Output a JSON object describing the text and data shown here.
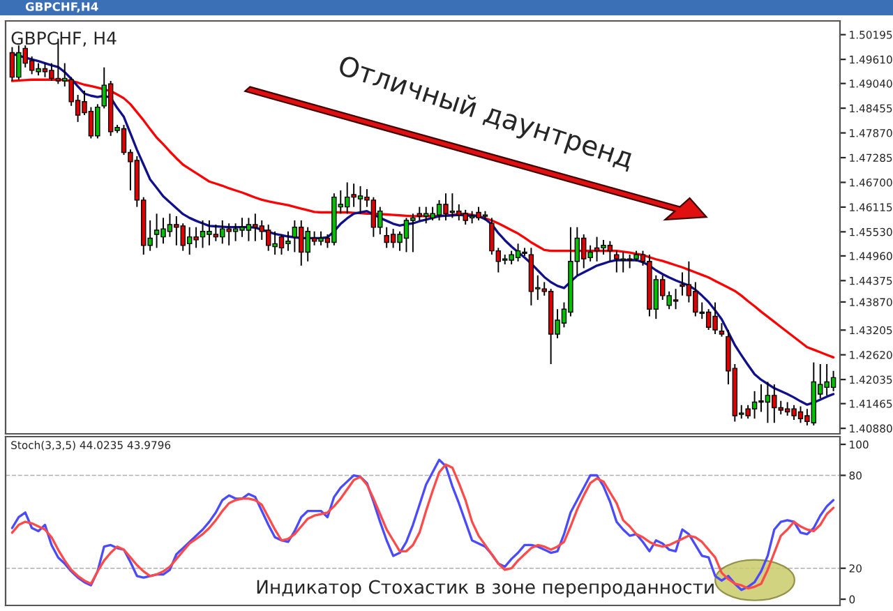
{
  "chart_data": [
    {
      "type": "candlestick",
      "title": "GBPCHF, H4",
      "annotations": [
        "GBPCHF,H4",
        "Отличный даунтренд"
      ],
      "categories": [
        null,
        null,
        null,
        null,
        null,
        null,
        null,
        null,
        null,
        null,
        null,
        null,
        null,
        null,
        null,
        null,
        null,
        null,
        null,
        null,
        null,
        null,
        null,
        null,
        null,
        null,
        null,
        null,
        null,
        null,
        null,
        null,
        null,
        null,
        null,
        null,
        null,
        null,
        null,
        null,
        null,
        null,
        null,
        null,
        null,
        null,
        null,
        null,
        null,
        null,
        null,
        null,
        null,
        null,
        null,
        null,
        null,
        null,
        null,
        null,
        null,
        null,
        null,
        null,
        null,
        null,
        null,
        null,
        null,
        null,
        null,
        null,
        null,
        null,
        null,
        null,
        null,
        null,
        null,
        null,
        null,
        null,
        null,
        null,
        null,
        null,
        null,
        null,
        null,
        null,
        null,
        null,
        null,
        null,
        null,
        null,
        null,
        null,
        null,
        null,
        null,
        null,
        null,
        null,
        null,
        null,
        null,
        null,
        null,
        null,
        null,
        null,
        null,
        null,
        null,
        null,
        null,
        null,
        null,
        null,
        null,
        null,
        null,
        null,
        null,
        null
      ],
      "ohlc": [
        [
          1.4977,
          1.499,
          1.491,
          1.4919
        ],
        [
          1.4919,
          1.4994,
          1.4913,
          1.4977
        ],
        [
          1.4987,
          1.4994,
          1.4942,
          1.4952
        ],
        [
          1.4958,
          1.4968,
          1.4926,
          1.4935
        ],
        [
          1.4932,
          1.4952,
          1.4923,
          1.4939
        ],
        [
          1.4939,
          1.4952,
          1.4919,
          1.4932
        ],
        [
          1.4935,
          1.4952,
          1.491,
          1.4916
        ],
        [
          1.4916,
          1.501,
          1.4903,
          1.491
        ],
        [
          1.491,
          1.4952,
          1.4897,
          1.4916
        ],
        [
          1.4913,
          1.4919,
          1.4851,
          1.4861
        ],
        [
          1.4864,
          1.4877,
          1.4813,
          1.4829
        ],
        [
          1.4861,
          1.4887,
          1.4829,
          1.4835
        ],
        [
          1.4838,
          1.4848,
          1.4774,
          1.478
        ],
        [
          1.478,
          1.4855,
          1.4774,
          1.4848
        ],
        [
          1.4851,
          1.4942,
          1.4845,
          1.49
        ],
        [
          1.4903,
          1.491,
          1.478,
          1.479
        ],
        [
          1.4793,
          1.4806,
          1.4787,
          1.48
        ],
        [
          1.4797,
          1.4806,
          1.4735,
          1.4741
        ],
        [
          1.4741,
          1.4748,
          1.4651,
          1.4719
        ],
        [
          1.4722,
          1.4732,
          1.4612,
          1.4628
        ],
        [
          1.4628,
          1.4635,
          1.4499,
          1.4521
        ],
        [
          1.4521,
          1.458,
          1.4508,
          1.4538
        ],
        [
          1.4547,
          1.4596,
          1.4515,
          1.4557
        ],
        [
          1.4541,
          1.4586,
          1.4525,
          1.456
        ],
        [
          1.4554,
          1.4596,
          1.4541,
          1.457
        ],
        [
          1.457,
          1.459,
          1.4521,
          1.4564
        ],
        [
          1.4567,
          1.4573,
          1.4508,
          1.4521
        ],
        [
          1.4525,
          1.4564,
          1.4499,
          1.4541
        ],
        [
          1.4541,
          1.4564,
          1.4515,
          1.4534
        ],
        [
          1.4541,
          1.458,
          1.4515,
          1.4554
        ],
        [
          1.4547,
          1.458,
          1.4521,
          1.4554
        ],
        [
          1.4547,
          1.457,
          1.4531,
          1.4541
        ],
        [
          1.4541,
          1.458,
          1.4525,
          1.456
        ],
        [
          1.456,
          1.4573,
          1.4521,
          1.4554
        ],
        [
          1.4554,
          1.4573,
          1.4531,
          1.456
        ],
        [
          1.4557,
          1.4586,
          1.4541,
          1.4564
        ],
        [
          1.4557,
          1.4586,
          1.4531,
          1.457
        ],
        [
          1.457,
          1.4596,
          1.4531,
          1.4564
        ],
        [
          1.4567,
          1.458,
          1.4534,
          1.4554
        ],
        [
          1.4557,
          1.457,
          1.4508,
          1.4521
        ],
        [
          1.4518,
          1.4554,
          1.4499,
          1.4525
        ],
        [
          1.4541,
          1.4547,
          1.4499,
          1.4515
        ],
        [
          1.4525,
          1.4554,
          1.4508,
          1.4531
        ],
        [
          1.4541,
          1.458,
          1.4505,
          1.4564
        ],
        [
          1.4564,
          1.458,
          1.4473,
          1.4505
        ],
        [
          1.4505,
          1.4564,
          1.4483,
          1.4554
        ],
        [
          1.4538,
          1.4554,
          1.4521,
          1.4531
        ],
        [
          1.4531,
          1.4554,
          1.4521,
          1.4538
        ],
        [
          1.4538,
          1.4547,
          1.4515,
          1.4528
        ],
        [
          1.4528,
          1.4644,
          1.4521,
          1.4635
        ],
        [
          1.4612,
          1.4651,
          1.4596,
          1.4618
        ],
        [
          1.4612,
          1.467,
          1.4596,
          1.4635
        ],
        [
          1.4641,
          1.4667,
          1.4612,
          1.4635
        ],
        [
          1.4631,
          1.4661,
          1.4596,
          1.4638
        ],
        [
          1.4635,
          1.4654,
          1.4612,
          1.4628
        ],
        [
          1.4628,
          1.4635,
          1.4541,
          1.4564
        ],
        [
          1.4564,
          1.4612,
          1.4547,
          1.4602
        ],
        [
          1.4544,
          1.4564,
          1.4515,
          1.4528
        ],
        [
          1.4547,
          1.456,
          1.4515,
          1.4528
        ],
        [
          1.4528,
          1.4554,
          1.4508,
          1.4547
        ],
        [
          1.4538,
          1.4586,
          1.4505,
          1.458
        ],
        [
          1.458,
          1.4596,
          1.4505,
          1.4586
        ],
        [
          1.4596,
          1.4612,
          1.458,
          1.459
        ],
        [
          1.459,
          1.4612,
          1.4573,
          1.4596
        ],
        [
          1.4586,
          1.4612,
          1.458,
          1.4596
        ],
        [
          1.4593,
          1.4628,
          1.458,
          1.4618
        ],
        [
          1.4618,
          1.4644,
          1.458,
          1.4596
        ],
        [
          1.4599,
          1.4644,
          1.4586,
          1.4602
        ],
        [
          1.4602,
          1.4618,
          1.458,
          1.4593
        ],
        [
          1.4596,
          1.4605,
          1.457,
          1.458
        ],
        [
          1.4586,
          1.4602,
          1.4573,
          1.459
        ],
        [
          1.4599,
          1.4612,
          1.458,
          1.4586
        ],
        [
          1.459,
          1.4602,
          1.458,
          1.4593
        ],
        [
          1.4573,
          1.4586,
          1.4499,
          1.4508
        ],
        [
          1.4508,
          1.4515,
          1.4457,
          1.4483
        ],
        [
          1.4486,
          1.4499,
          1.4476,
          1.4489
        ],
        [
          1.4486,
          1.4508,
          1.4476,
          1.4499
        ],
        [
          1.4492,
          1.4525,
          1.4483,
          1.4508
        ],
        [
          1.4505,
          1.4515,
          1.4496,
          1.4502
        ],
        [
          1.4499,
          1.4515,
          1.4379,
          1.4412
        ],
        [
          1.4418,
          1.445,
          1.4392,
          1.4421
        ],
        [
          1.4418,
          1.4434,
          1.4402,
          1.4412
        ],
        [
          1.4412,
          1.4418,
          1.424,
          1.4311
        ],
        [
          1.4311,
          1.437,
          1.4301,
          1.4344
        ],
        [
          1.4337,
          1.4386,
          1.4327,
          1.437
        ],
        [
          1.4363,
          1.4564,
          1.4353,
          1.4483
        ],
        [
          1.4483,
          1.4564,
          1.445,
          1.4538
        ],
        [
          1.4538,
          1.4547,
          1.4467,
          1.4489
        ],
        [
          1.4492,
          1.4521,
          1.4483,
          1.4505
        ],
        [
          1.4515,
          1.4541,
          1.4483,
          1.4508
        ],
        [
          1.4515,
          1.4534,
          1.4499,
          1.4521
        ],
        [
          1.4521,
          1.4531,
          1.4483,
          1.4508
        ],
        [
          1.4499,
          1.4508,
          1.4457,
          1.4489
        ],
        [
          1.4486,
          1.4505,
          1.4457,
          1.4489
        ],
        [
          1.4489,
          1.4499,
          1.4467,
          1.4486
        ],
        [
          1.4489,
          1.4508,
          1.4483,
          1.4499
        ],
        [
          1.4499,
          1.4508,
          1.4473,
          1.4483
        ],
        [
          1.4483,
          1.4499,
          1.4353,
          1.437
        ],
        [
          1.437,
          1.445,
          1.4347,
          1.444
        ],
        [
          1.444,
          1.445,
          1.4392,
          1.4402
        ],
        [
          1.4379,
          1.4412,
          1.437,
          1.4402
        ],
        [
          1.4392,
          1.4418,
          1.437,
          1.4389
        ],
        [
          1.4428,
          1.4457,
          1.4402,
          1.4424
        ],
        [
          1.4428,
          1.4483,
          1.4386,
          1.4402
        ],
        [
          1.4412,
          1.4434,
          1.4353,
          1.4363
        ],
        [
          1.436,
          1.4386,
          1.4347,
          1.4363
        ],
        [
          1.4363,
          1.437,
          1.4321,
          1.4327
        ],
        [
          1.4353,
          1.4386,
          1.4311,
          1.4321
        ],
        [
          1.4318,
          1.4337,
          1.4305,
          1.4311
        ],
        [
          1.4305,
          1.4321,
          1.4192,
          1.4224
        ],
        [
          1.423,
          1.424,
          1.4104,
          1.4118
        ],
        [
          1.4121,
          1.4143,
          1.4111,
          1.4124
        ],
        [
          1.4134,
          1.4143,
          1.4111,
          1.4118
        ],
        [
          1.4134,
          1.4176,
          1.4111,
          1.415
        ],
        [
          1.4153,
          1.4192,
          1.4127,
          1.415
        ],
        [
          1.415,
          1.4198,
          1.4101,
          1.4166
        ],
        [
          1.4166,
          1.4192,
          1.4101,
          1.4137
        ],
        [
          1.4137,
          1.4153,
          1.4121,
          1.4131
        ],
        [
          1.4134,
          1.415,
          1.4118,
          1.4127
        ],
        [
          1.4134,
          1.4143,
          1.4108,
          1.4118
        ],
        [
          1.4127,
          1.414,
          1.4101,
          1.4111
        ],
        [
          1.4118,
          1.4134,
          1.4095,
          1.4104
        ],
        [
          1.4101,
          1.4244,
          1.4095,
          1.4198
        ],
        [
          1.4169,
          1.424,
          1.4159,
          1.4192
        ],
        [
          1.4185,
          1.424,
          1.4166,
          1.4198
        ],
        [
          1.4185,
          1.4224,
          1.4176,
          1.4208
        ]
      ],
      "colors": [
        "#e00000",
        "#00c000",
        "#e00000",
        "#e00000",
        "#00c000",
        "#e00000",
        "#e00000",
        "#e00000",
        "#00c000",
        "#e00000",
        "#e00000",
        "#e00000",
        "#e00000",
        "#00c000",
        "#00c000",
        "#e00000",
        "#00c000",
        "#e00000",
        "#e00000",
        "#e00000",
        "#e00000",
        "#00c000",
        "#00c000",
        "#00c000",
        "#00c000",
        "#e00000",
        "#e00000",
        "#00c000",
        "#e00000",
        "#00c000",
        "#00c000",
        "#e00000",
        "#00c000",
        "#e00000",
        "#00c000",
        "#00c000",
        "#00c000",
        "#e00000",
        "#e00000",
        "#e00000",
        "#00c000",
        "#e00000",
        "#00c000",
        "#00c000",
        "#e00000",
        "#00c000",
        "#e00000",
        "#00c000",
        "#e00000",
        "#00c000",
        "#00c000",
        "#00c000",
        "#e00000",
        "#00c000",
        "#e00000",
        "#e00000",
        "#00c000",
        "#e00000",
        "#e00000",
        "#00c000",
        "#00c000",
        "#00c000",
        "#e00000",
        "#00c000",
        "#00c000",
        "#00c000",
        "#e00000",
        "#00c000",
        "#e00000",
        "#e00000",
        "#00c000",
        "#e00000",
        "#00c000",
        "#e00000",
        "#e00000",
        "#00c000",
        "#00c000",
        "#00c000",
        "#e00000",
        "#e00000",
        "#00c000",
        "#e00000",
        "#e00000",
        "#00c000",
        "#00c000",
        "#00c000",
        "#00c000",
        "#e00000",
        "#00c000",
        "#e00000",
        "#00c000",
        "#e00000",
        "#e00000",
        "#00c000",
        "#e00000",
        "#00c000",
        "#e00000",
        "#e00000",
        "#00c000",
        "#e00000",
        "#00c000",
        "#e00000",
        "#e00000",
        "#e00000",
        "#e00000",
        "#00c000",
        "#e00000",
        "#e00000",
        "#e00000",
        "#e00000",
        "#e00000",
        "#00c000",
        "#e00000",
        "#00c000",
        "#e00000",
        "#00c000",
        "#e00000",
        "#e00000",
        "#e00000",
        "#e00000",
        "#e00000",
        "#e00000",
        "#00c000",
        "#00c000",
        "#00c000",
        "#00c000"
      ],
      "series": [
        {
          "type": "line",
          "color": "#ff0000",
          "values": [
            1.491,
            1.4911,
            1.4912,
            1.4913,
            1.4913,
            1.4913,
            1.4913,
            1.4913,
            1.4912,
            1.491,
            1.4906,
            1.4901,
            1.4898,
            1.4894,
            1.489,
            1.4886,
            1.4878,
            1.4869,
            1.4855,
            1.4836,
            1.4817,
            1.4796,
            1.4776,
            1.476,
            1.4743,
            1.4727,
            1.4712,
            1.4702,
            1.4692,
            1.4682,
            1.4672,
            1.4667,
            1.4662,
            1.4656,
            1.4651,
            1.4646,
            1.464,
            1.4634,
            1.4629,
            1.4625,
            1.4622,
            1.4619,
            1.4616,
            1.4612,
            1.4608,
            1.4604,
            1.46,
            1.4599,
            1.4599,
            1.4599,
            1.4599,
            1.4599,
            1.4598,
            1.4597,
            1.4596,
            1.4596,
            1.4595,
            1.4594,
            1.4593,
            1.4592,
            1.4591,
            1.459,
            1.459,
            1.459,
            1.459,
            1.459,
            1.4592,
            1.4593,
            1.4595,
            1.4596,
            1.4593,
            1.459,
            1.4585,
            1.458,
            1.4573,
            1.4565,
            1.4557,
            1.4549,
            1.4539,
            1.4528,
            1.4519,
            1.451,
            1.4508,
            1.4508,
            1.4508,
            1.4508,
            1.4508,
            1.4508,
            1.4508,
            1.4508,
            1.4508,
            1.4508,
            1.4508,
            1.4506,
            1.4504,
            1.4501,
            1.4498,
            1.4493,
            1.4488,
            1.4484,
            1.4479,
            1.4474,
            1.4469,
            1.4463,
            1.4457,
            1.4451,
            1.4445,
            1.4437,
            1.4429,
            1.4421,
            1.4413,
            1.4402,
            1.4389,
            1.4377,
            1.4364,
            1.4352,
            1.434,
            1.4328,
            1.4316,
            1.4304,
            1.4292,
            1.428,
            1.4274,
            1.4268,
            1.4262,
            1.4256
          ]
        },
        {
          "type": "line",
          "color": "#10108c",
          "values": [
            1.4974,
            1.497,
            1.4965,
            1.4961,
            1.4957,
            1.4952,
            1.4947,
            1.4943,
            1.4931,
            1.4915,
            1.4897,
            1.488,
            1.4875,
            1.4872,
            1.4875,
            1.487,
            1.4846,
            1.4825,
            1.4786,
            1.4747,
            1.4712,
            1.4677,
            1.4657,
            1.4637,
            1.4623,
            1.4609,
            1.4595,
            1.4586,
            1.4579,
            1.4573,
            1.4567,
            1.4566,
            1.4565,
            1.4564,
            1.4564,
            1.4564,
            1.4564,
            1.4563,
            1.4558,
            1.4553,
            1.4548,
            1.4545,
            1.4542,
            1.454,
            1.4538,
            1.4538,
            1.4538,
            1.4538,
            1.454,
            1.4554,
            1.4572,
            1.4585,
            1.4596,
            1.4599,
            1.4602,
            1.4594,
            1.4586,
            1.4579,
            1.4572,
            1.4568,
            1.4571,
            1.4573,
            1.4578,
            1.4582,
            1.4586,
            1.459,
            1.4591,
            1.4592,
            1.4593,
            1.4592,
            1.4591,
            1.459,
            1.4583,
            1.4571,
            1.455,
            1.4533,
            1.4518,
            1.4505,
            1.4492,
            1.4478,
            1.4462,
            1.4446,
            1.4434,
            1.4425,
            1.442,
            1.4435,
            1.4449,
            1.4457,
            1.4465,
            1.4473,
            1.4478,
            1.4483,
            1.4486,
            1.4486,
            1.4486,
            1.4486,
            1.4481,
            1.4473,
            1.4462,
            1.4453,
            1.4445,
            1.4438,
            1.4432,
            1.4426,
            1.4416,
            1.4402,
            1.4387,
            1.4367,
            1.4346,
            1.4316,
            1.4285,
            1.4261,
            1.4238,
            1.4216,
            1.4203,
            1.4193,
            1.4183,
            1.4176,
            1.4169,
            1.4161,
            1.4152,
            1.4144,
            1.4149,
            1.4156,
            1.4163,
            1.4169
          ]
        }
      ],
      "ylim": [
        1.4075,
        1.5052
      ],
      "yticks": [
        {
          "value": 1.50195,
          "label": "1.50195"
        },
        {
          "value": 1.4961,
          "label": "1.49610"
        },
        {
          "value": 1.4904,
          "label": "1.49040"
        },
        {
          "value": 1.48455,
          "label": "1.48455"
        },
        {
          "value": 1.4787,
          "label": "1.47870"
        },
        {
          "value": 1.47285,
          "label": "1.47285"
        },
        {
          "value": 1.467,
          "label": "1.46700"
        },
        {
          "value": 1.46115,
          "label": "1.46115"
        },
        {
          "value": 1.4553,
          "label": "1.45530"
        },
        {
          "value": 1.4496,
          "label": "1.44960"
        },
        {
          "value": 1.44375,
          "label": "1.44375"
        },
        {
          "value": 1.4387,
          "label": "1.43870"
        },
        {
          "value": 1.43205,
          "label": "1.43205"
        },
        {
          "value": 1.4262,
          "label": "1.42620"
        },
        {
          "value": 1.42035,
          "label": "1.42035"
        },
        {
          "value": 1.41465,
          "label": "1.41465"
        },
        {
          "value": 1.4088,
          "label": "1.40880"
        }
      ],
      "tick_labels": "y",
      "grid": false
    },
    {
      "type": "line",
      "title": "Stoch(3,3,5) 44.0235 43.9796",
      "annotations": [
        "Индикатор Стохастик в зоне перепроданности"
      ],
      "categories": [
        null,
        null,
        null,
        null,
        null,
        null,
        null,
        null,
        null,
        null,
        null,
        null,
        null,
        null,
        null,
        null,
        null,
        null,
        null,
        null,
        null,
        null,
        null,
        null,
        null,
        null,
        null,
        null,
        null,
        null,
        null,
        null,
        null,
        null,
        null,
        null,
        null,
        null,
        null,
        null,
        null,
        null,
        null,
        null,
        null,
        null,
        null,
        null,
        null,
        null,
        null,
        null,
        null,
        null,
        null,
        null,
        null,
        null,
        null,
        null,
        null,
        null,
        null,
        null,
        null,
        null,
        null,
        null,
        null,
        null,
        null,
        null,
        null,
        null,
        null,
        null,
        null,
        null,
        null,
        null,
        null,
        null,
        null,
        null,
        null,
        null,
        null,
        null,
        null,
        null,
        null,
        null,
        null,
        null,
        null,
        null,
        null,
        null,
        null,
        null,
        null,
        null,
        null,
        null,
        null,
        null,
        null,
        null,
        null,
        null,
        null,
        null,
        null,
        null,
        null,
        null,
        null,
        null,
        null,
        null,
        null,
        null,
        null,
        null,
        null,
        null
      ],
      "series": [
        {
          "color": "#4a4aff",
          "values": [
            46,
            53,
            56,
            46,
            44,
            48,
            35,
            27,
            23,
            18,
            14,
            11,
            9,
            18,
            34,
            35,
            33,
            32,
            24,
            15,
            14,
            15,
            16,
            16,
            19,
            29,
            33,
            37,
            41,
            45,
            50,
            56,
            64,
            67,
            65,
            65,
            68,
            66,
            57,
            48,
            40,
            38,
            37,
            44,
            53,
            57,
            57,
            57,
            53,
            66,
            72,
            76,
            80,
            79,
            75,
            63,
            50,
            38,
            28,
            30,
            37,
            48,
            61,
            74,
            82,
            90,
            86,
            73,
            62,
            50,
            38,
            36,
            34,
            29,
            23,
            21,
            26,
            30,
            35,
            35,
            34,
            32,
            30,
            31,
            42,
            56,
            64,
            72,
            80,
            80,
            73,
            63,
            50,
            45,
            41,
            42,
            37,
            31,
            38,
            36,
            32,
            31,
            45,
            42,
            35,
            28,
            27,
            15,
            12,
            15,
            10,
            6,
            8,
            11,
            18,
            28,
            45,
            50,
            51,
            50,
            43,
            42,
            46,
            54,
            60,
            64
          ]
        },
        {
          "color": "#ff4a4a",
          "values": [
            43,
            48,
            50,
            49,
            47,
            45,
            40,
            32,
            25,
            19,
            15,
            12,
            10,
            18,
            25,
            30,
            34,
            32,
            27,
            22,
            18,
            15,
            16,
            18,
            21,
            26,
            31,
            36,
            39,
            42,
            46,
            51,
            57,
            62,
            64,
            65,
            65,
            64,
            61,
            53,
            45,
            38,
            39,
            42,
            47,
            52,
            54,
            55,
            56,
            60,
            65,
            71,
            77,
            79,
            74,
            65,
            55,
            45,
            38,
            31,
            31,
            35,
            43,
            57,
            70,
            82,
            87,
            85,
            75,
            64,
            50,
            41,
            35,
            29,
            23,
            19,
            20,
            25,
            29,
            33,
            35,
            34,
            32,
            34,
            37,
            47,
            58,
            67,
            75,
            78,
            76,
            69,
            62,
            51,
            47,
            42,
            40,
            37,
            35,
            34,
            35,
            37,
            39,
            41,
            40,
            37,
            32,
            27,
            17,
            13,
            10,
            9,
            7,
            8,
            10,
            19,
            30,
            41,
            45,
            50,
            47,
            45,
            44,
            48,
            55,
            59
          ]
        }
      ],
      "ylim": [
        -4,
        105
      ],
      "yticks": [
        0,
        20,
        80,
        100
      ],
      "ref_lines": [
        {
          "axis": "y",
          "value": 20,
          "color": "#b0b0b0",
          "line_style": "dashed"
        },
        {
          "axis": "y",
          "value": 80,
          "color": "#b0b0b0",
          "line_style": "dashed"
        }
      ],
      "tick_labels": "y",
      "grid": false
    }
  ]
}
